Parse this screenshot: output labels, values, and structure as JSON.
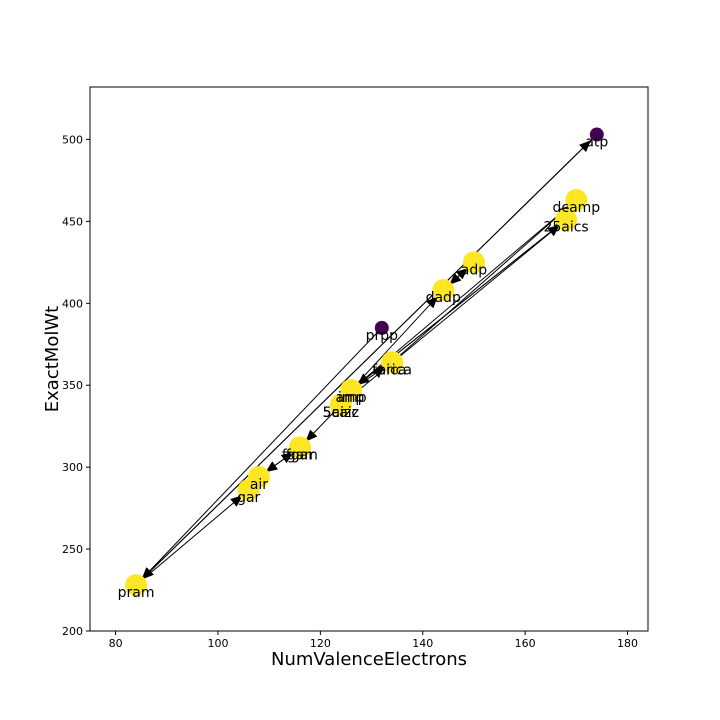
{
  "chart_data": {
    "type": "scatter",
    "title": "",
    "xlabel": "NumValenceElectrons",
    "ylabel": "ExactMolWt",
    "xlim": [
      75,
      184
    ],
    "ylim": [
      200,
      532
    ],
    "xticks": [
      80,
      100,
      120,
      140,
      160,
      180
    ],
    "yticks": [
      200,
      250,
      300,
      350,
      400,
      450,
      500
    ],
    "grid": false,
    "colors": {
      "yellow": "#fde725",
      "purple": "#440154",
      "arrow": "#000000"
    },
    "points": [
      {
        "label": "pram",
        "x": 84,
        "y": 228,
        "color": "yellow"
      },
      {
        "label": "gar",
        "x": 106,
        "y": 286,
        "color": "yellow"
      },
      {
        "label": "air",
        "x": 108,
        "y": 294,
        "color": "yellow"
      },
      {
        "label": "fgam",
        "x": 116,
        "y": 312,
        "color": "yellow"
      },
      {
        "label": "fgar",
        "x": 116,
        "y": 312,
        "color": "yellow"
      },
      {
        "label": "5aizc",
        "x": 124,
        "y": 338,
        "color": "yellow"
      },
      {
        "label": "5caiz",
        "x": 124,
        "y": 338,
        "color": "yellow"
      },
      {
        "label": "imp",
        "x": 126,
        "y": 347,
        "color": "yellow"
      },
      {
        "label": "amp",
        "x": 126,
        "y": 347,
        "color": "yellow"
      },
      {
        "label": "prpp",
        "x": 132,
        "y": 385,
        "color": "purple"
      },
      {
        "label": "aica",
        "x": 134,
        "y": 364,
        "color": "yellow"
      },
      {
        "label": "fprica",
        "x": 134,
        "y": 364,
        "color": "yellow"
      },
      {
        "label": "dadp",
        "x": 144,
        "y": 408,
        "color": "yellow"
      },
      {
        "label": "adp",
        "x": 150,
        "y": 425,
        "color": "yellow"
      },
      {
        "label": "25aics",
        "x": 168,
        "y": 451,
        "color": "yellow"
      },
      {
        "label": "dcamp",
        "x": 170,
        "y": 463,
        "color": "yellow"
      },
      {
        "label": "atp",
        "x": 174,
        "y": 503,
        "color": "purple"
      }
    ],
    "edges": [
      {
        "from": [
          174,
          503
        ],
        "to": [
          84,
          228
        ]
      },
      {
        "from": [
          132,
          385
        ],
        "to": [
          84,
          228
        ]
      },
      {
        "from": [
          84,
          228
        ],
        "to": [
          174,
          503
        ]
      },
      {
        "from": [
          84,
          228
        ],
        "to": [
          106,
          286
        ]
      },
      {
        "from": [
          108,
          294
        ],
        "to": [
          116,
          312
        ]
      },
      {
        "from": [
          116,
          312
        ],
        "to": [
          108,
          294
        ]
      },
      {
        "from": [
          124,
          338
        ],
        "to": [
          116,
          312
        ]
      },
      {
        "from": [
          126,
          347
        ],
        "to": [
          168,
          451
        ]
      },
      {
        "from": [
          124,
          338
        ],
        "to": [
          168,
          451
        ]
      },
      {
        "from": [
          134,
          364
        ],
        "to": [
          170,
          463
        ]
      },
      {
        "from": [
          170,
          463
        ],
        "to": [
          126,
          347
        ]
      },
      {
        "from": [
          168,
          451
        ],
        "to": [
          126,
          347
        ]
      },
      {
        "from": [
          126,
          347
        ],
        "to": [
          134,
          364
        ]
      },
      {
        "from": [
          150,
          425
        ],
        "to": [
          144,
          408
        ]
      },
      {
        "from": [
          144,
          408
        ],
        "to": [
          150,
          425
        ]
      },
      {
        "from": [
          126,
          347
        ],
        "to": [
          144,
          408
        ]
      }
    ]
  }
}
